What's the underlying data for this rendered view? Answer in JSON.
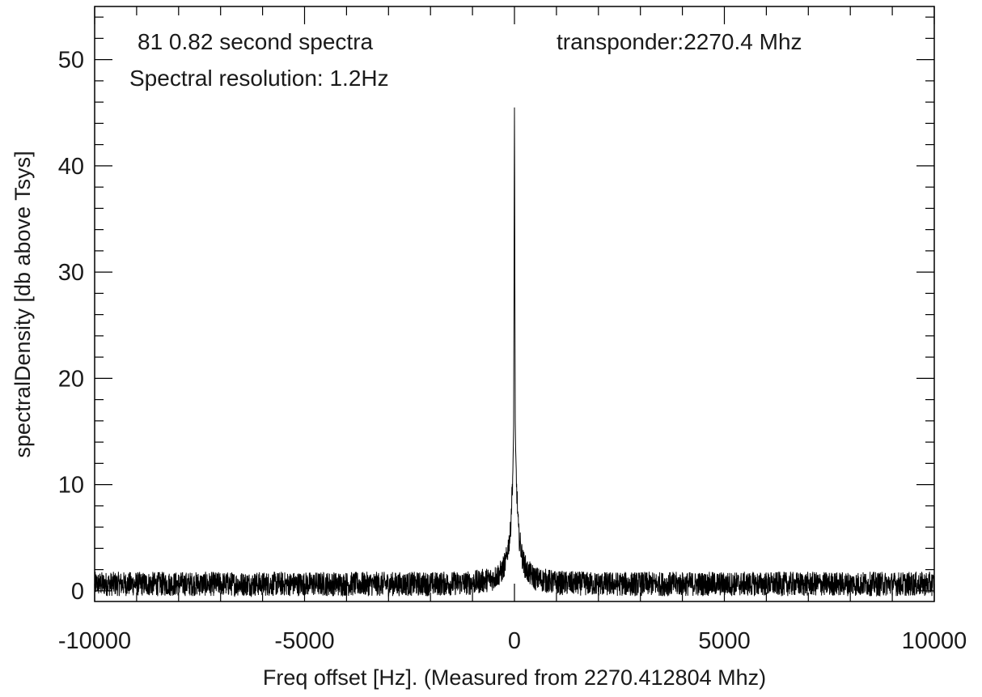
{
  "chart_data": {
    "type": "line",
    "title": "",
    "xlabel": "Freq offset [Hz]. (Measured from 2270.412804 Mhz)",
    "ylabel": "spectralDensity [db above Tsys]",
    "xlim": [
      -10000,
      10000
    ],
    "ylim": [
      -1,
      55
    ],
    "x_ticks": [
      -10000,
      -5000,
      0,
      5000,
      10000
    ],
    "x_tick_labels": [
      "-10000",
      "-5000",
      "0",
      "5000",
      "10000"
    ],
    "y_ticks": [
      0,
      10,
      20,
      30,
      40,
      50
    ],
    "y_tick_labels": [
      "0",
      "10",
      "20",
      "30",
      "40",
      "50"
    ],
    "grid": false,
    "annotations": {
      "spectra": "81 0.82 second spectra",
      "resolution": "Spectral resolution: 1.2Hz",
      "transponder": "transponder:2270.4 Mhz"
    },
    "series": [
      {
        "x": [
          -10000,
          -8000,
          -6000,
          -4000,
          -2000,
          -1000,
          -500,
          -300,
          -200,
          -100,
          -50,
          -20,
          0,
          20,
          50,
          100,
          200,
          300,
          500,
          1000,
          2000,
          4000,
          6000,
          8000,
          10000
        ],
        "y": [
          0.3,
          0.3,
          0.3,
          0.3,
          0.3,
          0.4,
          0.8,
          1.5,
          2.5,
          5.0,
          9.5,
          13.5,
          45.5,
          13.5,
          9.5,
          5.0,
          2.5,
          1.5,
          0.8,
          0.4,
          0.3,
          0.3,
          0.3,
          0.3,
          0.3
        ],
        "noise_band": [
          -0.8,
          1.5
        ],
        "color": "#000000"
      }
    ]
  }
}
